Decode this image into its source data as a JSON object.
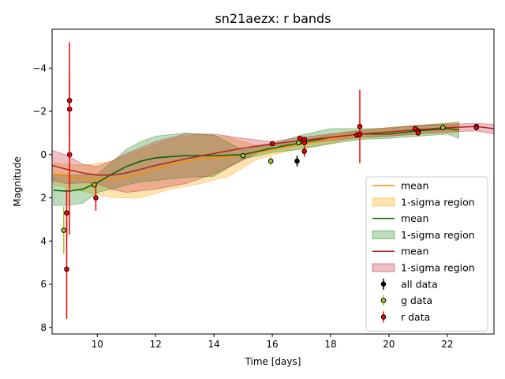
{
  "chart_data": {
    "type": "line",
    "title": "sn21aezx: r bands",
    "xlabel": "Time [days]",
    "ylabel": "Magnitude",
    "xlim": [
      8.45,
      23.6
    ],
    "ylim": [
      8.3,
      -5.8
    ],
    "y_inverted": true,
    "grid": false,
    "legend_position": "lower right",
    "x_ticks": [
      10,
      12,
      14,
      16,
      18,
      20,
      22
    ],
    "x_tick_labels": [
      "10",
      "12",
      "14",
      "16",
      "18",
      "20",
      "22"
    ],
    "y_ticks": [
      -4,
      -2,
      0,
      2,
      4,
      6,
      8
    ],
    "y_tick_labels": [
      "−4",
      "−2",
      "0",
      "2",
      "4",
      "6",
      "8"
    ],
    "colors": {
      "orange_mean": "#ff8c00",
      "orange_band": "#ffa500",
      "green_mean": "#006400",
      "green_band": "#228b22",
      "red_mean": "#b22222",
      "red_band": "#c0303a",
      "all_data": "#000000",
      "g_data": "#9acd32",
      "r_data": "#ff0000"
    },
    "series": [
      {
        "name": "mean",
        "kind": "line",
        "color_key": "orange_mean",
        "x": [
          8.5,
          9.5,
          10.5,
          11.5,
          12.5,
          13.5,
          14.5,
          15.5,
          16.5,
          17.5,
          18.5,
          19.5,
          20.5,
          21.5,
          22.4
        ],
        "y": [
          0.9,
          1.1,
          1.15,
          0.9,
          0.45,
          0.2,
          0.1,
          -0.1,
          -0.35,
          -0.6,
          -0.85,
          -1.0,
          -1.1,
          -1.2,
          -1.25
        ]
      },
      {
        "name": "1-sigma region",
        "kind": "band",
        "color_key": "orange_band",
        "x": [
          8.5,
          9.5,
          10.5,
          11.5,
          12.5,
          13.5,
          14.5,
          15.5,
          16.5,
          17.5,
          18.5,
          19.5,
          20.5,
          21.5,
          22.4
        ],
        "lower": [
          0.4,
          0.5,
          0.3,
          -0.2,
          -0.7,
          -0.95,
          -0.8,
          -0.4,
          -0.55,
          -0.8,
          -1.05,
          -1.2,
          -1.3,
          -1.4,
          -1.5
        ],
        "upper": [
          1.4,
          1.7,
          2.0,
          2.0,
          1.6,
          1.35,
          1.0,
          0.2,
          -0.15,
          -0.4,
          -0.65,
          -0.8,
          -0.9,
          -1.0,
          -1.0
        ]
      },
      {
        "name": "mean",
        "kind": "line",
        "color_key": "green_mean",
        "x": [
          8.5,
          9.0,
          9.5,
          10.0,
          10.5,
          11.0,
          11.5,
          12.0,
          13.0,
          14.0,
          15.0,
          16.0,
          17.0,
          18.0,
          19.0,
          20.0,
          21.0,
          22.0,
          22.4
        ],
        "y": [
          1.65,
          1.7,
          1.6,
          1.3,
          0.9,
          0.55,
          0.3,
          0.15,
          0.05,
          0.05,
          0.0,
          -0.3,
          -0.55,
          -0.8,
          -0.95,
          -0.95,
          -1.1,
          -1.2,
          -1.15
        ]
      },
      {
        "name": "1-sigma region",
        "kind": "band",
        "color_key": "green_band",
        "x": [
          8.5,
          9.0,
          9.5,
          10.0,
          10.5,
          11.0,
          11.5,
          12.0,
          13.0,
          14.0,
          15.0,
          16.0,
          17.0,
          18.0,
          19.0,
          20.0,
          21.0,
          22.0,
          22.4
        ],
        "lower": [
          0.9,
          0.95,
          0.95,
          0.9,
          0.35,
          -0.25,
          -0.6,
          -0.85,
          -1.0,
          -0.9,
          -0.2,
          -0.5,
          -0.9,
          -1.2,
          -1.2,
          -1.2,
          -1.35,
          -1.45,
          -1.5
        ],
        "upper": [
          2.35,
          2.35,
          2.25,
          1.75,
          1.6,
          1.4,
          1.25,
          1.2,
          1.05,
          1.0,
          0.2,
          -0.1,
          -0.25,
          -0.5,
          -0.7,
          -0.75,
          -0.85,
          -0.95,
          -0.75
        ]
      },
      {
        "name": "mean",
        "kind": "line",
        "color_key": "red_mean",
        "x": [
          8.45,
          9.0,
          9.5,
          10.0,
          10.5,
          11.0,
          12.0,
          13.0,
          14.0,
          15.0,
          16.0,
          17.0,
          18.0,
          19.0,
          20.0,
          21.0,
          22.0,
          23.0,
          23.6
        ],
        "y": [
          0.5,
          0.7,
          0.85,
          0.95,
          0.95,
          0.85,
          0.5,
          0.2,
          -0.05,
          -0.3,
          -0.5,
          -0.65,
          -0.8,
          -0.95,
          -1.05,
          -1.15,
          -1.25,
          -1.3,
          -1.2
        ]
      },
      {
        "name": "1-sigma region",
        "kind": "band",
        "color_key": "red_band",
        "x": [
          8.45,
          9.0,
          9.5,
          10.0,
          10.5,
          11.0,
          12.0,
          13.0,
          14.0,
          15.0,
          16.0,
          17.0,
          18.0,
          19.0,
          20.0,
          21.0,
          22.0,
          23.0,
          23.6
        ],
        "lower": [
          -0.2,
          0.05,
          0.45,
          0.55,
          0.3,
          -0.05,
          -0.6,
          -0.95,
          -0.95,
          -0.75,
          -0.6,
          -0.8,
          -0.95,
          -1.1,
          -1.25,
          -1.35,
          -1.4,
          -1.45,
          -1.4
        ],
        "upper": [
          1.2,
          1.35,
          1.3,
          1.35,
          1.6,
          1.75,
          1.6,
          1.35,
          0.9,
          0.25,
          -0.4,
          -0.5,
          -0.65,
          -0.8,
          -0.85,
          -0.95,
          -1.05,
          -1.1,
          -0.95
        ]
      },
      {
        "name": "all data",
        "kind": "errorbar",
        "color_key": "all_data",
        "points": [
          {
            "x": 16.85,
            "y": 0.3,
            "err": 0.25
          }
        ]
      },
      {
        "name": "g data",
        "kind": "errorbar",
        "color_key": "g_data",
        "points": [
          {
            "x": 8.85,
            "y": 3.5,
            "err": 1.1
          },
          {
            "x": 9.9,
            "y": 1.4,
            "err": 0.2
          },
          {
            "x": 15.0,
            "y": 0.05,
            "err": 0.1
          },
          {
            "x": 15.95,
            "y": 0.3,
            "err": 0.2
          },
          {
            "x": 16.9,
            "y": -0.55,
            "err": 0.15
          },
          {
            "x": 21.85,
            "y": -1.25,
            "err": 0.1
          }
        ]
      },
      {
        "name": "r data",
        "kind": "errorbar",
        "color_key": "r_data",
        "points": [
          {
            "x": 8.95,
            "y": 5.3,
            "err": 2.3
          },
          {
            "x": 8.95,
            "y": 2.7,
            "err": 1.1
          },
          {
            "x": 9.05,
            "y": 0.0,
            "err": 3.7
          },
          {
            "x": 9.05,
            "y": -2.1,
            "err": 1.4
          },
          {
            "x": 9.05,
            "y": -2.5,
            "err": 2.7
          },
          {
            "x": 9.95,
            "y": 2.0,
            "err": 0.6
          },
          {
            "x": 16.0,
            "y": -0.5,
            "err": 0.1
          },
          {
            "x": 16.95,
            "y": -0.75,
            "err": 0.1
          },
          {
            "x": 17.1,
            "y": -0.7,
            "err": 0.1
          },
          {
            "x": 17.1,
            "y": -0.55,
            "err": 0.1
          },
          {
            "x": 17.1,
            "y": -0.15,
            "err": 0.25
          },
          {
            "x": 18.9,
            "y": -0.9,
            "err": 0.1
          },
          {
            "x": 19.0,
            "y": -1.3,
            "err": 1.7
          },
          {
            "x": 19.0,
            "y": -0.95,
            "err": 0.1
          },
          {
            "x": 20.9,
            "y": -1.2,
            "err": 0.1
          },
          {
            "x": 21.0,
            "y": -1.1,
            "err": 0.1
          },
          {
            "x": 21.0,
            "y": -1.0,
            "err": 0.1
          },
          {
            "x": 23.0,
            "y": -1.3,
            "err": 0.1
          },
          {
            "x": 23.0,
            "y": -1.25,
            "err": 0.1
          }
        ]
      }
    ]
  }
}
